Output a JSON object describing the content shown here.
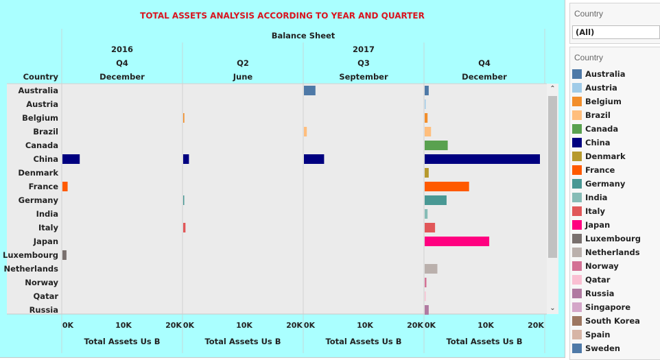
{
  "title": "TOTAL ASSETS ANALYSIS ACCORDING TO YEAR AND QUARTER",
  "header": {
    "balance_sheet": "Balance Sheet",
    "country_col": "Country",
    "years": [
      "2016",
      "2017"
    ],
    "columns": [
      {
        "quarter": "Q4",
        "month": "December"
      },
      {
        "quarter": "Q2",
        "month": "June"
      },
      {
        "quarter": "Q3",
        "month": "September"
      },
      {
        "quarter": "Q4",
        "month": "December"
      }
    ]
  },
  "axis": {
    "ticks": [
      "0K",
      "10K",
      "20K"
    ],
    "title": "Total Assets Us B"
  },
  "filter": {
    "title": "Country",
    "value": "(All)"
  },
  "legend": {
    "title": "Country",
    "items": [
      {
        "label": "Australia",
        "color": "#4e79a7"
      },
      {
        "label": "Austria",
        "color": "#a0cbe8"
      },
      {
        "label": "Belgium",
        "color": "#f28e2b"
      },
      {
        "label": "Brazil",
        "color": "#ffbe7d"
      },
      {
        "label": "Canada",
        "color": "#59a14f"
      },
      {
        "label": "China",
        "color": "#000080"
      },
      {
        "label": "Denmark",
        "color": "#b6992d"
      },
      {
        "label": "France",
        "color": "#ff5a00"
      },
      {
        "label": "Germany",
        "color": "#499894"
      },
      {
        "label": "India",
        "color": "#86bcb6"
      },
      {
        "label": "Italy",
        "color": "#e15759"
      },
      {
        "label": "Japan",
        "color": "#ff0080"
      },
      {
        "label": "Luxembourg",
        "color": "#79706e"
      },
      {
        "label": "Netherlands",
        "color": "#bab0ac"
      },
      {
        "label": "Norway",
        "color": "#d37295"
      },
      {
        "label": "Qatar",
        "color": "#fabfd2"
      },
      {
        "label": "Russia",
        "color": "#b07aa1"
      },
      {
        "label": "Singapore",
        "color": "#d4a6c8"
      },
      {
        "label": "South Korea",
        "color": "#9d7660"
      },
      {
        "label": "Spain",
        "color": "#d7b5a6"
      },
      {
        "label": "Sweden",
        "color": "#4e79a7"
      }
    ]
  },
  "chart_data": {
    "type": "bar",
    "orientation": "horizontal",
    "xlim": [
      0,
      20000
    ],
    "categories": [
      "Australia",
      "Austria",
      "Belgium",
      "Brazil",
      "Canada",
      "China",
      "Denmark",
      "France",
      "Germany",
      "India",
      "Italy",
      "Japan",
      "Luxembourg",
      "Netherlands",
      "Norway",
      "Qatar",
      "Russia"
    ],
    "series": [
      {
        "values": [
          0,
          0,
          0,
          0,
          0,
          3000,
          0,
          900,
          0,
          0,
          0,
          0,
          700,
          0,
          0,
          0,
          0
        ]
      },
      {
        "values": [
          0,
          0,
          200,
          0,
          0,
          1000,
          0,
          0,
          150,
          0,
          400,
          0,
          0,
          0,
          0,
          0,
          0
        ]
      },
      {
        "values": [
          2000,
          0,
          0,
          500,
          0,
          3500,
          0,
          0,
          0,
          0,
          0,
          0,
          0,
          0,
          0,
          0,
          0
        ]
      },
      {
        "values": [
          700,
          100,
          500,
          1100,
          4000,
          20000,
          700,
          7700,
          3800,
          500,
          1800,
          11200,
          0,
          2200,
          300,
          100,
          700
        ]
      }
    ]
  }
}
